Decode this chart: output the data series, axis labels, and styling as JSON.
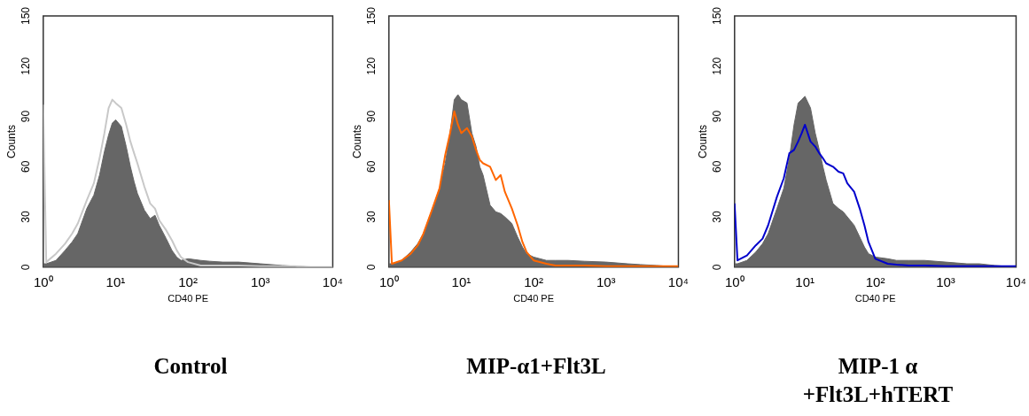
{
  "chart_data": [
    {
      "type": "area",
      "title": "Control",
      "xlabel": "CD40 PE",
      "ylabel": "Counts",
      "log": "x",
      "xlim": [
        1,
        10000
      ],
      "xticks": [
        {
          "value": 1,
          "label": "10⁰"
        },
        {
          "value": 10,
          "label": "10¹"
        },
        {
          "value": 100,
          "label": "10²"
        },
        {
          "value": 1000,
          "label": "10³"
        },
        {
          "value": 10000,
          "label": "10⁴"
        }
      ],
      "ylim": [
        0,
        150
      ],
      "yticks": [
        0,
        30,
        60,
        90,
        120,
        150
      ],
      "x": [
        1,
        1.1,
        1.5,
        2,
        2.5,
        3,
        4,
        5,
        6,
        7,
        8,
        9,
        10,
        12,
        14,
        16,
        18,
        20,
        25,
        30,
        35,
        40,
        50,
        60,
        70,
        80,
        100,
        150,
        200,
        300,
        500,
        1000,
        2000,
        3000,
        5000,
        10000
      ],
      "series": [
        {
          "color": "#666666",
          "values": [
            2,
            2,
            4,
            10,
            15,
            20,
            35,
            43,
            55,
            69,
            79,
            86,
            88,
            84,
            72,
            60,
            51,
            44,
            34,
            29,
            31,
            25,
            17,
            10,
            6,
            4,
            5,
            4,
            3.5,
            3,
            3,
            2,
            1,
            0.5,
            0,
            0
          ]
        },
        {
          "type": "line",
          "color": "#c8c8c8",
          "values": [
            97,
            3,
            8,
            14,
            20,
            26,
            40,
            50,
            65,
            80,
            95,
            100,
            98,
            95,
            85,
            75,
            68,
            62,
            48,
            38,
            35,
            28,
            22,
            16,
            10,
            6,
            3,
            1,
            1,
            1,
            1,
            0.5,
            0.5,
            0.5,
            0,
            0
          ]
        }
      ]
    },
    {
      "type": "area",
      "title": "MIP-α1+Flt3L",
      "xlabel": "CD40 PE",
      "ylabel": "Counts",
      "log": "x",
      "xlim": [
        1,
        10000
      ],
      "xticks": [
        {
          "value": 1,
          "label": "10⁰"
        },
        {
          "value": 10,
          "label": "10¹"
        },
        {
          "value": 100,
          "label": "10²"
        },
        {
          "value": 1000,
          "label": "10³"
        },
        {
          "value": 10000,
          "label": "10⁴"
        }
      ],
      "ylim": [
        0,
        150
      ],
      "yticks": [
        0,
        30,
        60,
        90,
        120,
        150
      ],
      "x": [
        1,
        1.1,
        1.5,
        2,
        2.5,
        3,
        4,
        5,
        6,
        7,
        8,
        9,
        10,
        12,
        14,
        16,
        18,
        20,
        25,
        30,
        35,
        40,
        50,
        60,
        70,
        80,
        100,
        150,
        200,
        300,
        500,
        1000,
        2000,
        3000,
        5000,
        10000
      ],
      "series": [
        {
          "color": "#666666",
          "values": [
            2,
            2,
            4,
            9,
            14,
            20,
            35,
            47,
            62,
            80,
            100,
            103,
            100,
            98,
            80,
            72,
            60,
            55,
            37,
            33,
            32,
            30,
            26,
            18,
            12,
            8,
            6,
            4,
            4,
            4,
            3.5,
            3,
            2,
            1.5,
            1,
            0
          ]
        },
        {
          "type": "line",
          "color": "#ff6600",
          "values": [
            40,
            2,
            4,
            8,
            13,
            20,
            35,
            47,
            67,
            80,
            93,
            85,
            80,
            83,
            78,
            70,
            64,
            62,
            60,
            52,
            55,
            45,
            35,
            25,
            15,
            9,
            4,
            2,
            1,
            1,
            1,
            0.5,
            0.5,
            0.5,
            0.5,
            0.5
          ]
        }
      ]
    },
    {
      "type": "area",
      "title": "MIP-1 α +Flt3L+hTERT",
      "xlabel": "CD40 PE",
      "ylabel": "Counts",
      "log": "x",
      "xlim": [
        1,
        10000
      ],
      "xticks": [
        {
          "value": 1,
          "label": "10⁰"
        },
        {
          "value": 10,
          "label": "10¹"
        },
        {
          "value": 100,
          "label": "10²"
        },
        {
          "value": 1000,
          "label": "10³"
        },
        {
          "value": 10000,
          "label": "10⁴"
        }
      ],
      "ylim": [
        0,
        150
      ],
      "yticks": [
        0,
        30,
        60,
        90,
        120,
        150
      ],
      "x": [
        1,
        1.1,
        1.5,
        2,
        2.5,
        3,
        4,
        5,
        6,
        7,
        8,
        9,
        10,
        12,
        14,
        16,
        18,
        20,
        25,
        30,
        35,
        40,
        50,
        60,
        70,
        80,
        100,
        150,
        200,
        300,
        500,
        1000,
        2000,
        3000,
        5000,
        10000
      ],
      "series": [
        {
          "color": "#666666",
          "values": [
            2,
            2,
            4,
            9,
            14,
            20,
            35,
            47,
            65,
            85,
            98,
            100,
            102,
            95,
            80,
            70,
            60,
            52,
            38,
            35,
            33,
            30,
            25,
            18,
            12,
            8,
            6,
            5,
            4,
            4,
            4,
            3,
            2,
            2,
            1,
            0
          ]
        },
        {
          "type": "line",
          "color": "#0000cc",
          "values": [
            38,
            4,
            7,
            13,
            17,
            25,
            42,
            53,
            68,
            70,
            75,
            80,
            85,
            75,
            72,
            68,
            65,
            62,
            60,
            57,
            56,
            50,
            45,
            35,
            25,
            15,
            5,
            2,
            1.5,
            1,
            1,
            0.5,
            0.5,
            0.5,
            0.5,
            0.5
          ]
        }
      ]
    }
  ]
}
